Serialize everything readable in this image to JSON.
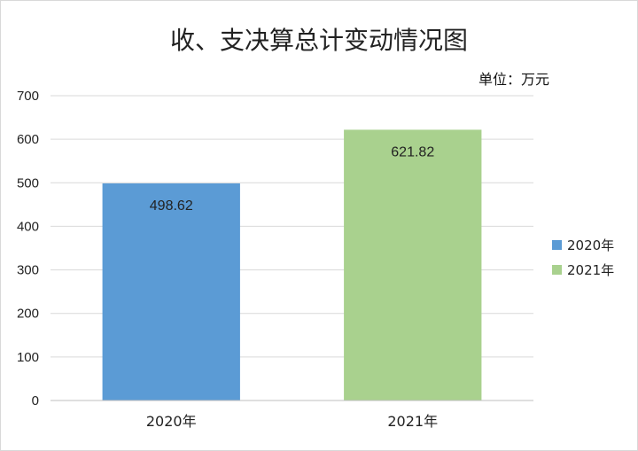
{
  "chart_data": {
    "type": "bar",
    "title": "收、支决算总计变动情况图",
    "unit_label": "单位：万元",
    "categories": [
      "2020年",
      "2021年"
    ],
    "values": [
      498.62,
      621.82
    ],
    "value_labels": [
      "498.62",
      "621.82"
    ],
    "ylim": [
      0,
      700
    ],
    "yticks": [
      0,
      100,
      200,
      300,
      400,
      500,
      600,
      700
    ],
    "grid": true,
    "legend_position": "right",
    "legend": [
      {
        "name": "2020年",
        "color": "#5b9bd5"
      },
      {
        "name": "2021年",
        "color": "#a9d18e"
      }
    ],
    "colors": [
      "#5b9bd5",
      "#a9d18e"
    ]
  }
}
